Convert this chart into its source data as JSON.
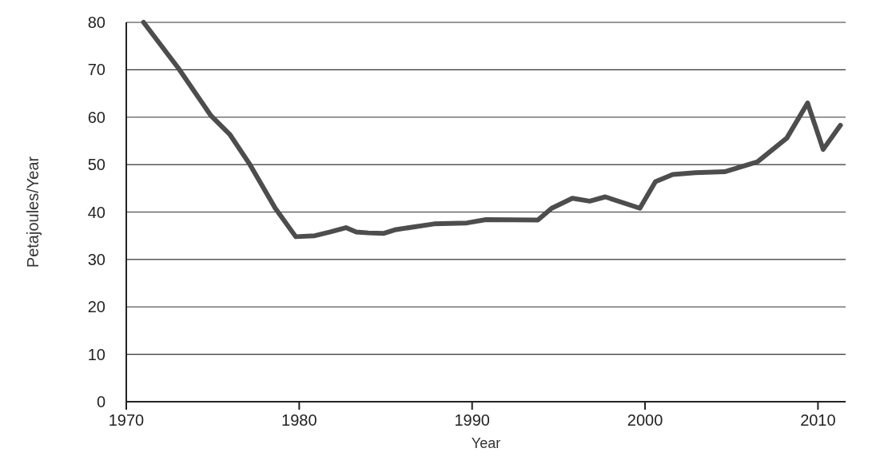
{
  "chart_data": {
    "type": "line",
    "xlabel": "Year",
    "ylabel": "Petajoules/Year",
    "x": [
      1971,
      1973,
      1974.9,
      1976,
      1977.1,
      1978.6,
      1979.8,
      1980.9,
      1981.8,
      1982.7,
      1983.3,
      1984,
      1984.9,
      1985.6,
      1987.8,
      1989.7,
      1990.8,
      1993.8,
      1994.6,
      1995.8,
      1996.8,
      1997.7,
      1999.7,
      2000.6,
      2001.6,
      2002.9,
      2004.6,
      2006.5,
      2008.2,
      2009.4,
      2010.3,
      2011.3
    ],
    "series": [
      {
        "color": "#4d4d4d",
        "values": [
          80,
          70.4,
          60.3,
          56.3,
          50.3,
          40.9,
          34.8,
          35,
          35.8,
          36.7,
          35.8,
          35.6,
          35.5,
          36.3,
          37.5,
          37.7,
          38.4,
          38.3,
          40.8,
          42.9,
          42.3,
          43.2,
          40.8,
          46.4,
          47.9,
          48.3,
          48.5,
          50.6,
          55.6,
          63,
          53.2,
          58.3
        ]
      }
    ],
    "xlim": [
      1970,
      2011.6
    ],
    "xticks": [
      1970,
      1980,
      1990,
      2000,
      2010
    ],
    "ylim": [
      0,
      80
    ],
    "yticks": [
      0,
      10,
      20,
      30,
      40,
      50,
      60,
      70,
      80
    ],
    "grid": "y",
    "marker": "none",
    "line_style": "solid"
  }
}
